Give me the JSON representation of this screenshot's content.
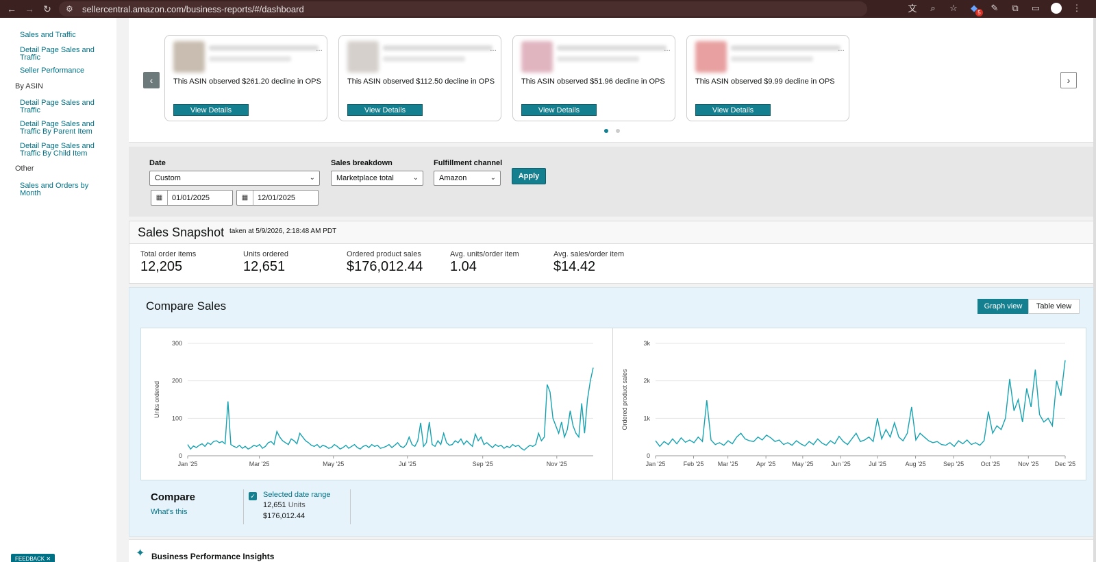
{
  "browser": {
    "url": "sellercentral.amazon.com/business-reports/#/dashboard",
    "back_icon": "back-arrow-icon",
    "forward_icon": "forward-arrow-icon",
    "reload_icon": "reload-icon"
  },
  "sidebar": {
    "top_links": [
      "Sales and Traffic",
      "Detail Page Sales and Traffic",
      "Seller Performance"
    ],
    "by_asin_label": "By ASIN",
    "asin_links": [
      "Detail Page Sales and Traffic",
      "Detail Page Sales and Traffic By Parent Item",
      "Detail Page Sales and Traffic By Child Item"
    ],
    "other_label": "Other",
    "other_links": [
      "Sales and Orders by Month"
    ],
    "feedback": "FEEDBACK ✕"
  },
  "carousel": {
    "cards": [
      {
        "message": "This ASIN observed $261.20 decline in OPS",
        "button": "View Details",
        "thumb_color": "#c8bdb0"
      },
      {
        "message": "This ASIN observed $112.50 decline in OPS",
        "button": "View Details",
        "thumb_color": "#d5d0cc"
      },
      {
        "message": "This ASIN observed $51.96 decline in OPS",
        "button": "View Details",
        "thumb_color": "#e0b5c0"
      },
      {
        "message": "This ASIN observed $9.99 decline in OPS",
        "button": "View Details",
        "thumb_color": "#e8a0a0"
      }
    ],
    "prev_label": "‹",
    "next_label": "›"
  },
  "filters": {
    "date_label": "Date",
    "date_value": "Custom",
    "start_date": "01/01/2025",
    "end_date": "12/01/2025",
    "breakdown_label": "Sales breakdown",
    "breakdown_value": "Marketplace total",
    "channel_label": "Fulfillment channel",
    "channel_value": "Amazon",
    "apply": "Apply"
  },
  "snapshot": {
    "title": "Sales Snapshot",
    "taken": "taken at 5/9/2026, 2:18:48 AM PDT",
    "metrics": [
      {
        "label": "Total order items",
        "value": "12,205"
      },
      {
        "label": "Units ordered",
        "value": "12,651"
      },
      {
        "label": "Ordered product sales",
        "value": "$176,012.44"
      },
      {
        "label": "Avg. units/order item",
        "value": "1.04"
      },
      {
        "label": "Avg. sales/order item",
        "value": "$14.42"
      }
    ]
  },
  "compare": {
    "title": "Compare Sales",
    "graph_view": "Graph view",
    "table_view": "Table view",
    "compare_label": "Compare",
    "whats_this": "What's this",
    "selected_range": "Selected date range",
    "units_value": "12,651",
    "units_word": "Units",
    "sales_value": "$176,012.44"
  },
  "insights": {
    "title": "Business Performance Insights"
  },
  "colors": {
    "accent": "#137f8f",
    "line": "#17a2b0"
  },
  "chart_data": [
    {
      "type": "line",
      "ylabel": "Units ordered",
      "ylim": [
        0,
        300
      ],
      "yticks": [
        "0",
        "100",
        "200",
        "300"
      ],
      "xticks": [
        "Jan '25",
        "Mar '25",
        "May '25",
        "Jul '25",
        "Sep '25",
        "Nov '25"
      ],
      "xrange": [
        "2025-01-01",
        "2025-12-01"
      ],
      "series": [
        {
          "values": [
            30,
            18,
            26,
            22,
            28,
            32,
            25,
            35,
            30,
            38,
            40,
            35,
            38,
            32,
            145,
            30,
            25,
            22,
            28,
            20,
            25,
            18,
            22,
            28,
            25,
            30,
            20,
            25,
            35,
            38,
            30,
            65,
            50,
            40,
            35,
            30,
            45,
            40,
            32,
            60,
            50,
            40,
            35,
            28,
            25,
            30,
            22,
            28,
            25,
            20,
            22,
            30,
            25,
            18,
            22,
            28,
            20,
            25,
            30,
            22,
            18,
            25,
            28,
            22,
            30,
            25,
            28,
            20,
            22,
            25,
            30,
            22,
            28,
            35,
            25,
            22,
            30,
            50,
            30,
            25,
            40,
            88,
            25,
            35,
            90,
            30,
            25,
            40,
            30,
            60,
            35,
            28,
            30,
            40,
            35,
            45,
            30,
            40,
            32,
            25,
            58,
            40,
            50,
            30,
            35,
            28,
            22,
            30,
            25,
            28,
            20,
            25,
            22,
            30,
            25,
            28,
            20,
            15,
            22,
            28,
            25,
            30,
            60,
            40,
            50,
            190,
            170,
            100,
            80,
            60,
            90,
            50,
            70,
            120,
            80,
            60,
            50,
            140,
            60,
            150,
            200,
            235
          ]
        }
      ]
    },
    {
      "type": "line",
      "ylabel": "Ordered product sales",
      "ylim": [
        0,
        3000
      ],
      "yticks": [
        "0",
        "1k",
        "2k",
        "3k"
      ],
      "xticks": [
        "Jan '25",
        "Feb '25",
        "Mar '25",
        "Apr '25",
        "May '25",
        "Jun '25",
        "Jul '25",
        "Aug '25",
        "Sep '25",
        "Oct '25",
        "Nov '25",
        "Dec '25"
      ],
      "xrange": [
        "2025-01-01",
        "2025-12-01"
      ],
      "series": [
        {
          "values": [
            400,
            250,
            380,
            300,
            450,
            320,
            480,
            360,
            420,
            350,
            500,
            380,
            1480,
            420,
            300,
            350,
            280,
            400,
            320,
            500,
            600,
            450,
            400,
            380,
            500,
            420,
            550,
            480,
            380,
            420,
            300,
            350,
            280,
            400,
            320,
            260,
            380,
            300,
            450,
            340,
            280,
            400,
            320,
            520,
            380,
            300,
            450,
            600,
            380,
            420,
            500,
            380,
            1000,
            450,
            700,
            500,
            880,
            500,
            400,
            600,
            1300,
            420,
            600,
            500,
            400,
            350,
            380,
            300,
            280,
            350,
            250,
            400,
            320,
            420,
            300,
            350,
            280,
            400,
            1180,
            600,
            800,
            700,
            1000,
            2050,
            1200,
            1500,
            900,
            1800,
            1300,
            2300,
            1100,
            900,
            1000,
            800,
            2000,
            1600,
            2550
          ]
        }
      ]
    }
  ]
}
